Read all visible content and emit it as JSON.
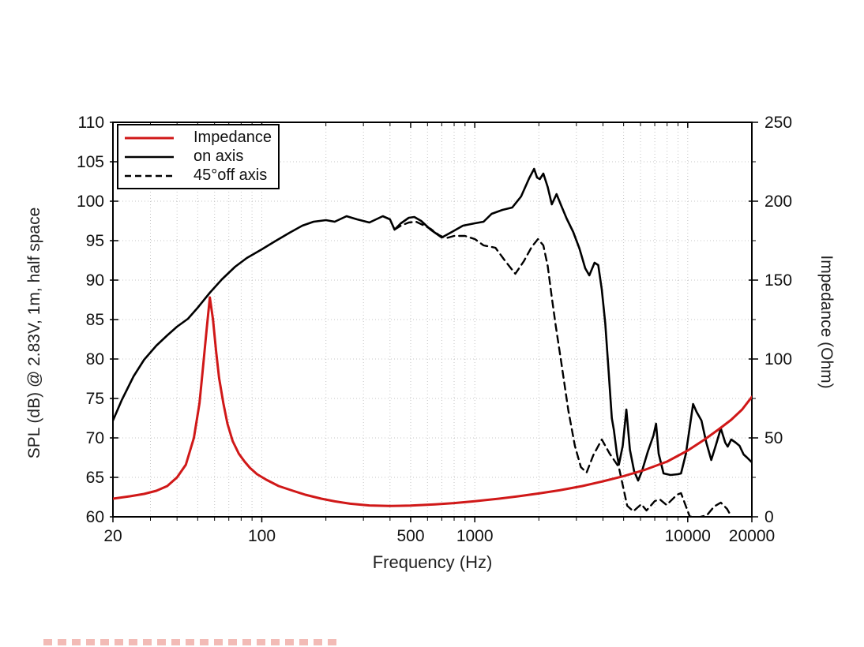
{
  "chart_data": {
    "type": "line",
    "title": "",
    "xlabel": "Frequency (Hz)",
    "ylabel_left": "SPL (dB) @ 2.83V, 1m, half space",
    "ylabel_right": "Impedance (Ohm)",
    "x_axis": {
      "scale": "log",
      "min": 20,
      "max": 20000,
      "major_ticks": [
        20,
        100,
        500,
        1000,
        10000,
        20000
      ],
      "major_tick_labels": [
        "20",
        "100",
        "500",
        "1000",
        "10000",
        "20000"
      ],
      "minor_ticks": [
        30,
        40,
        50,
        60,
        70,
        80,
        90,
        200,
        300,
        400,
        600,
        700,
        800,
        900,
        2000,
        3000,
        4000,
        5000,
        6000,
        7000,
        8000,
        9000
      ]
    },
    "y_left": {
      "min": 60,
      "max": 110,
      "ticks": [
        60,
        65,
        70,
        75,
        80,
        85,
        90,
        95,
        100,
        105,
        110
      ],
      "tick_labels": [
        "60",
        "65",
        "70",
        "75",
        "80",
        "85",
        "90",
        "95",
        "100",
        "105",
        "110"
      ]
    },
    "y_right": {
      "min": 0,
      "max": 250,
      "ticks": [
        0,
        50,
        100,
        150,
        200,
        250
      ],
      "tick_labels": [
        "0",
        "50",
        "100",
        "150",
        "200",
        "250"
      ],
      "minor_ticks": [
        25,
        75,
        125,
        175,
        225
      ]
    },
    "grid": {
      "show": true,
      "color": "#c4c4c4"
    },
    "legend": {
      "position": "top-left",
      "border": true
    },
    "series": [
      {
        "id": "on-axis",
        "name": "on axis",
        "axis": "left",
        "color": "#000000",
        "style": "solid",
        "width": 2.6,
        "points": [
          [
            20,
            72.2
          ],
          [
            22,
            74.8
          ],
          [
            25,
            77.8
          ],
          [
            28,
            79.9
          ],
          [
            32,
            81.7
          ],
          [
            36,
            83.0
          ],
          [
            40,
            84.1
          ],
          [
            45,
            85.1
          ],
          [
            50,
            86.5
          ],
          [
            57,
            88.4
          ],
          [
            65,
            90.1
          ],
          [
            75,
            91.7
          ],
          [
            85,
            92.8
          ],
          [
            100,
            93.9
          ],
          [
            115,
            94.9
          ],
          [
            135,
            96.0
          ],
          [
            155,
            96.9
          ],
          [
            175,
            97.4
          ],
          [
            200,
            97.6
          ],
          [
            220,
            97.4
          ],
          [
            250,
            98.1
          ],
          [
            280,
            97.7
          ],
          [
            320,
            97.3
          ],
          [
            370,
            98.1
          ],
          [
            400,
            97.7
          ],
          [
            420,
            96.4
          ],
          [
            450,
            97.2
          ],
          [
            490,
            97.9
          ],
          [
            520,
            98.0
          ],
          [
            560,
            97.5
          ],
          [
            620,
            96.4
          ],
          [
            700,
            95.4
          ],
          [
            780,
            96.1
          ],
          [
            880,
            96.9
          ],
          [
            1000,
            97.2
          ],
          [
            1100,
            97.4
          ],
          [
            1200,
            98.4
          ],
          [
            1350,
            98.9
          ],
          [
            1500,
            99.2
          ],
          [
            1650,
            100.6
          ],
          [
            1800,
            102.9
          ],
          [
            1900,
            104.1
          ],
          [
            1960,
            103.0
          ],
          [
            2020,
            102.8
          ],
          [
            2100,
            103.5
          ],
          [
            2200,
            101.8
          ],
          [
            2300,
            99.6
          ],
          [
            2420,
            100.9
          ],
          [
            2550,
            99.4
          ],
          [
            2700,
            97.8
          ],
          [
            2900,
            96.1
          ],
          [
            3100,
            94.0
          ],
          [
            3300,
            91.5
          ],
          [
            3450,
            90.6
          ],
          [
            3650,
            92.2
          ],
          [
            3800,
            91.9
          ],
          [
            3950,
            88.8
          ],
          [
            4100,
            84.5
          ],
          [
            4250,
            78.5
          ],
          [
            4400,
            72.5
          ],
          [
            4500,
            71.0
          ],
          [
            4650,
            68.0
          ],
          [
            4750,
            66.6
          ],
          [
            4950,
            69.0
          ],
          [
            5150,
            73.6
          ],
          [
            5350,
            68.5
          ],
          [
            5600,
            65.8
          ],
          [
            5850,
            64.6
          ],
          [
            6100,
            65.8
          ],
          [
            6500,
            68.3
          ],
          [
            6900,
            70.3
          ],
          [
            7100,
            71.8
          ],
          [
            7300,
            68.0
          ],
          [
            7700,
            65.5
          ],
          [
            8300,
            65.3
          ],
          [
            9000,
            65.4
          ],
          [
            9300,
            65.5
          ],
          [
            9800,
            68.0
          ],
          [
            10300,
            72.0
          ],
          [
            10600,
            74.3
          ],
          [
            11000,
            73.3
          ],
          [
            11600,
            72.2
          ],
          [
            12200,
            69.5
          ],
          [
            12900,
            67.2
          ],
          [
            13600,
            69.2
          ],
          [
            14300,
            71.2
          ],
          [
            15000,
            69.4
          ],
          [
            15400,
            68.9
          ],
          [
            16000,
            69.8
          ],
          [
            16800,
            69.4
          ],
          [
            17500,
            69.0
          ],
          [
            18300,
            67.9
          ],
          [
            19000,
            67.5
          ],
          [
            20000,
            66.9
          ]
        ]
      },
      {
        "id": "off-axis-45",
        "name": "45°off axis",
        "axis": "left",
        "color": "#000000",
        "style": "dashed",
        "width": 2.4,
        "points": [
          [
            420,
            96.4
          ],
          [
            450,
            96.9
          ],
          [
            490,
            97.3
          ],
          [
            530,
            97.4
          ],
          [
            570,
            97.0
          ],
          [
            620,
            96.5
          ],
          [
            680,
            95.7
          ],
          [
            730,
            95.3
          ],
          [
            800,
            95.6
          ],
          [
            900,
            95.6
          ],
          [
            1000,
            95.2
          ],
          [
            1100,
            94.4
          ],
          [
            1250,
            94.1
          ],
          [
            1400,
            92.3
          ],
          [
            1550,
            90.8
          ],
          [
            1700,
            92.4
          ],
          [
            1850,
            94.2
          ],
          [
            1980,
            95.2
          ],
          [
            2100,
            94.4
          ],
          [
            2200,
            91.8
          ],
          [
            2300,
            87.8
          ],
          [
            2400,
            84.2
          ],
          [
            2550,
            79.5
          ],
          [
            2750,
            73.5
          ],
          [
            2950,
            69.0
          ],
          [
            3150,
            66.3
          ],
          [
            3350,
            65.6
          ],
          [
            3600,
            67.8
          ],
          [
            3950,
            69.8
          ],
          [
            4300,
            68.0
          ],
          [
            4750,
            66.3
          ],
          [
            5000,
            63.5
          ],
          [
            5200,
            61.4
          ],
          [
            5550,
            60.7
          ],
          [
            6050,
            61.6
          ],
          [
            6400,
            60.8
          ],
          [
            7000,
            62.0
          ],
          [
            7400,
            62.2
          ],
          [
            7950,
            61.5
          ],
          [
            8900,
            62.8
          ],
          [
            9300,
            63.0
          ],
          [
            10200,
            60.1
          ],
          [
            10800,
            59.8
          ],
          [
            11500,
            60.0
          ],
          [
            12300,
            60.2
          ],
          [
            13300,
            61.3
          ],
          [
            14300,
            61.8
          ],
          [
            15300,
            61.0
          ],
          [
            15900,
            60.2
          ],
          [
            16200,
            59.5
          ]
        ]
      },
      {
        "id": "impedance",
        "name": "Impedance",
        "axis": "right",
        "color": "#d01818",
        "style": "solid",
        "width": 3,
        "points": [
          [
            20,
            11.5
          ],
          [
            24,
            13
          ],
          [
            28,
            14.5
          ],
          [
            32,
            16.5
          ],
          [
            36,
            19.5
          ],
          [
            40,
            25
          ],
          [
            44,
            33
          ],
          [
            48,
            50
          ],
          [
            51,
            72
          ],
          [
            53,
            95
          ],
          [
            55,
            118
          ],
          [
            57,
            139
          ],
          [
            59,
            125
          ],
          [
            61,
            105
          ],
          [
            63,
            88
          ],
          [
            66,
            72
          ],
          [
            69,
            59
          ],
          [
            73,
            48
          ],
          [
            78,
            40
          ],
          [
            83,
            35
          ],
          [
            88,
            31
          ],
          [
            95,
            27
          ],
          [
            105,
            23.5
          ],
          [
            120,
            19.5
          ],
          [
            140,
            16.5
          ],
          [
            160,
            14
          ],
          [
            190,
            11.5
          ],
          [
            220,
            9.8
          ],
          [
            260,
            8.3
          ],
          [
            320,
            7.2
          ],
          [
            400,
            6.9
          ],
          [
            500,
            7.1
          ],
          [
            650,
            7.9
          ],
          [
            800,
            8.7
          ],
          [
            1000,
            9.9
          ],
          [
            1300,
            11.5
          ],
          [
            1600,
            13
          ],
          [
            2000,
            14.8
          ],
          [
            2500,
            16.8
          ],
          [
            3200,
            19.5
          ],
          [
            4000,
            22.5
          ],
          [
            5000,
            25.8
          ],
          [
            6300,
            29.8
          ],
          [
            8000,
            35
          ],
          [
            10000,
            42
          ],
          [
            12000,
            49
          ],
          [
            14000,
            55.5
          ],
          [
            16000,
            61.5
          ],
          [
            18000,
            68
          ],
          [
            20000,
            76
          ]
        ]
      }
    ]
  },
  "legend_order": [
    "impedance",
    "on-axis",
    "off-axis-45"
  ],
  "watermark": {
    "present": true,
    "note_visible_text": ""
  }
}
